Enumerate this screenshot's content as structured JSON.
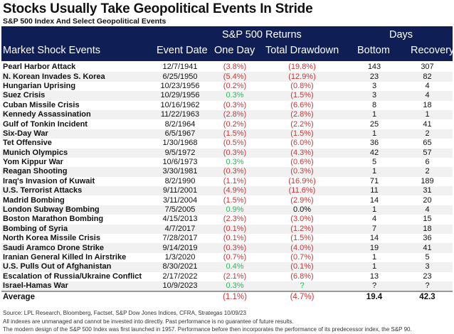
{
  "title": "Stocks Usually Take Geopolitical Events In Stride",
  "subtitle": "S&P 500 Index And Select Geopolitical Events",
  "header": {
    "group_returns": "S&P 500 Returns",
    "group_days": "Days",
    "col_event": "Market Shock Events",
    "col_date": "Event Date",
    "col_one_day": "One Day",
    "col_drawdown": "Total Drawdown",
    "col_bottom": "Bottom",
    "col_recovery": "Recovery"
  },
  "rows": [
    {
      "event": "Pearl Harbor Attack",
      "date": "12/7/1941",
      "one_day": "(3.8%)",
      "drawdown": "(19.8%)",
      "bottom": "143",
      "recovery": "307"
    },
    {
      "event": "N. Korean Invades S. Korea",
      "date": "6/25/1950",
      "one_day": "(5.4%)",
      "drawdown": "(12.9%)",
      "bottom": "23",
      "recovery": "82"
    },
    {
      "event": "Hungarian Uprising",
      "date": "10/23/1956",
      "one_day": "(0.2%)",
      "drawdown": "(0.8%)",
      "bottom": "3",
      "recovery": "4"
    },
    {
      "event": "Suez Crisis",
      "date": "10/29/1956",
      "one_day": "0.3%",
      "drawdown": "(1.5%)",
      "bottom": "3",
      "recovery": "4"
    },
    {
      "event": "Cuban Missile Crisis",
      "date": "10/16/1962",
      "one_day": "(0.3%)",
      "drawdown": "(6.6%)",
      "bottom": "8",
      "recovery": "18"
    },
    {
      "event": "Kennedy Assassination",
      "date": "11/22/1963",
      "one_day": "(2.8%)",
      "drawdown": "(2.8%)",
      "bottom": "1",
      "recovery": "1"
    },
    {
      "event": "Gulf of Tonkin Incident",
      "date": "8/2/1964",
      "one_day": "(0.2%)",
      "drawdown": "(2.2%)",
      "bottom": "25",
      "recovery": "41"
    },
    {
      "event": "Six-Day War",
      "date": "6/5/1967",
      "one_day": "(1.5%)",
      "drawdown": "(1.5%)",
      "bottom": "1",
      "recovery": "2"
    },
    {
      "event": "Tet Offensive",
      "date": "1/30/1968",
      "one_day": "(0.5%)",
      "drawdown": "(6.0%)",
      "bottom": "36",
      "recovery": "65"
    },
    {
      "event": "Munich Olympics",
      "date": "9/5/1972",
      "one_day": "(0.3%)",
      "drawdown": "(4.3%)",
      "bottom": "42",
      "recovery": "57"
    },
    {
      "event": "Yom Kippur War",
      "date": "10/6/1973",
      "one_day": "0.3%",
      "drawdown": "(0.6%)",
      "bottom": "5",
      "recovery": "6"
    },
    {
      "event": "Reagan Shooting",
      "date": "3/30/1981",
      "one_day": "(0.3%)",
      "drawdown": "(0.3%)",
      "bottom": "1",
      "recovery": "2"
    },
    {
      "event": "Iraq's Invasion of Kuwait",
      "date": "8/2/1990",
      "one_day": "(1.1%)",
      "drawdown": "(16.9%)",
      "bottom": "71",
      "recovery": "189"
    },
    {
      "event": "U.S. Terrorist Attacks",
      "date": "9/11/2001",
      "one_day": "(4.9%)",
      "drawdown": "(11.6%)",
      "bottom": "11",
      "recovery": "31"
    },
    {
      "event": "Madrid Bombing",
      "date": "3/11/2004",
      "one_day": "(1.5%)",
      "drawdown": "(2.9%)",
      "bottom": "14",
      "recovery": "20"
    },
    {
      "event": "London Subway Bombing",
      "date": "7/5/2005",
      "one_day": "0.9%",
      "drawdown": "0.0%",
      "bottom": "1",
      "recovery": "4"
    },
    {
      "event": "Boston Marathon Bombing",
      "date": "4/15/2013",
      "one_day": "(2.3%)",
      "drawdown": "(3.0%)",
      "bottom": "4",
      "recovery": "15"
    },
    {
      "event": "Bombing of Syria",
      "date": "4/7/2017",
      "one_day": "(0.1%)",
      "drawdown": "(1.2%)",
      "bottom": "7",
      "recovery": "18"
    },
    {
      "event": "North Korea Missile Crisis",
      "date": "7/28/2017",
      "one_day": "(0.1%)",
      "drawdown": "(1.5%)",
      "bottom": "14",
      "recovery": "36"
    },
    {
      "event": "Saudi Aramco Drone Strike",
      "date": "9/14/2019",
      "one_day": "(0.3%)",
      "drawdown": "(4.0%)",
      "bottom": "19",
      "recovery": "41"
    },
    {
      "event": "Iranian General Killed In Airstrike",
      "date": "1/3/2020",
      "one_day": "(0.7%)",
      "drawdown": "(0.7%)",
      "bottom": "1",
      "recovery": "5"
    },
    {
      "event": "U.S. Pulls Out of Afghanistan",
      "date": "8/30/2021",
      "one_day": "0.4%",
      "drawdown": "(0.1%)",
      "bottom": "1",
      "recovery": "3"
    },
    {
      "event": "Escalation of Russia/Ukraine Conflict",
      "date": "2/17/2022",
      "one_day": "(2.1%)",
      "drawdown": "(6.8%)",
      "bottom": "13",
      "recovery": "23"
    },
    {
      "event": "Israel-Hamas War",
      "date": "10/9/2023",
      "one_day": "0.3%",
      "drawdown": "?",
      "bottom": "?",
      "recovery": "?"
    }
  ],
  "average": {
    "label": "Average",
    "one_day": "(1.1%)",
    "drawdown": "(4.7%)",
    "bottom": "19.4",
    "recovery": "42.3"
  },
  "footnotes": [
    "Source: LPL Research, Bloomberg, Factset, S&P Dow Jones Indices, CFRA, Strategas 10/09/23",
    "All indexes are unmanaged and cannot be invested into directly.  Past performance is no guarantee of future results.",
    "The modern design of the S&P 500 Index was first launched in 1957. Performance before then incorporates the performance of its predecessor index, the S&P 90."
  ],
  "colors": {
    "header_bg": "#0f1e55",
    "negative": "#c0393b",
    "positive": "#2fb65c"
  }
}
